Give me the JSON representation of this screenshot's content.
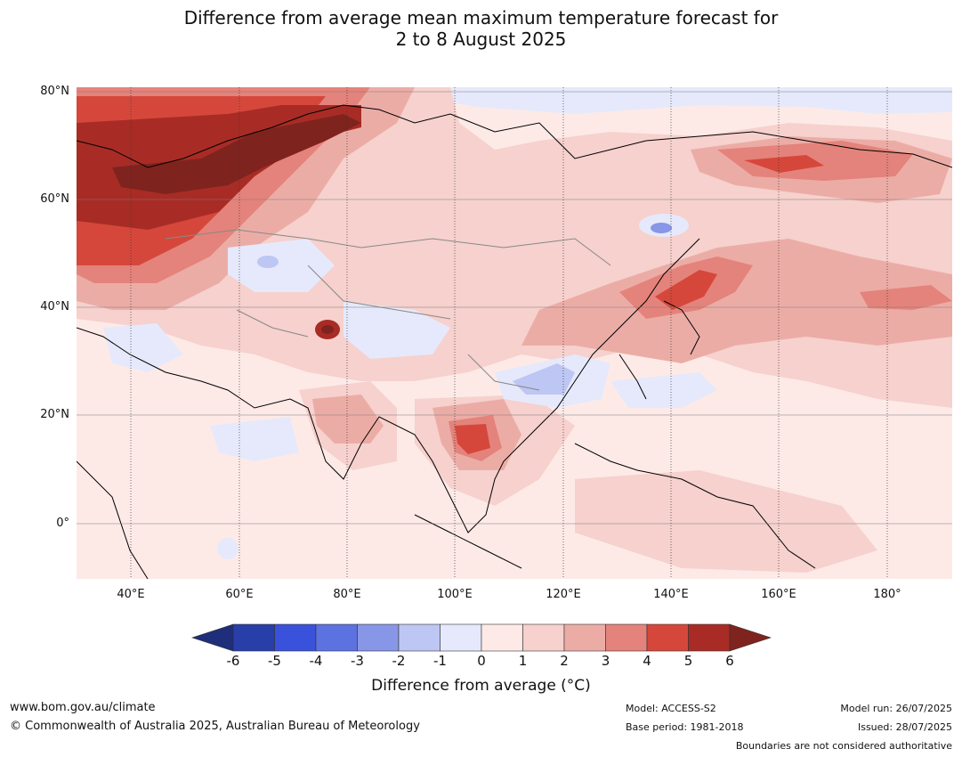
{
  "title_line1": "Difference from average mean maximum temperature forecast for",
  "title_line2": "2 to 8 August 2025",
  "map": {
    "lon_range": [
      30,
      192
    ],
    "lat_range": [
      -10,
      80
    ],
    "lat_labels": [
      "80°N",
      "60°N",
      "40°N",
      "20°N",
      "0°"
    ],
    "lon_labels": [
      "40°E",
      "60°E",
      "80°E",
      "100°E",
      "120°E",
      "140°E",
      "160°E",
      "180°"
    ],
    "features": [
      {
        "name": "northwest-russia-extreme-warm",
        "category": "6",
        "color": "#7f231f"
      },
      {
        "name": "yamal-warm-anomaly",
        "category": "5",
        "color": "#a82c25"
      },
      {
        "name": "pakistan-india-hotspot",
        "category": "5",
        "color": "#a82c25"
      },
      {
        "name": "thailand-laos-warm",
        "category": "4",
        "color": "#d6473b"
      },
      {
        "name": "japan-sea-warm",
        "category": "4",
        "color": "#d6473b"
      },
      {
        "name": "east-siberia-warm",
        "category": "4",
        "color": "#d6473b"
      },
      {
        "name": "southeast-china-cool",
        "category": "-2",
        "color": "#bec6f3"
      },
      {
        "name": "kazakhstan-cool",
        "category": "-2",
        "color": "#bec6f3"
      },
      {
        "name": "okhotsk-cool",
        "category": "-3",
        "color": "#8796e6"
      }
    ]
  },
  "colorbar": {
    "ticks": [
      "-6",
      "-5",
      "-4",
      "-3",
      "-2",
      "-1",
      "0",
      "1",
      "2",
      "3",
      "4",
      "5",
      "6"
    ],
    "colors": [
      "#283ea8",
      "#3a52db",
      "#5c72e0",
      "#8796e6",
      "#bec6f3",
      "#e6e9fb",
      "#fdeae7",
      "#f6d1cd",
      "#ecaca6",
      "#e4837b",
      "#d6473b",
      "#a82c25"
    ],
    "low_extend_color": "#1e2e7a",
    "high_extend_color": "#7f231f",
    "label": "Difference from average (°C)"
  },
  "footer": {
    "website": "www.bom.gov.au/climate",
    "copyright": "© Commonwealth of Australia 2025, Australian Bureau of Meteorology",
    "model": "Model: ACCESS-S2",
    "base_period": "Base period: 1981-2018",
    "model_run": "Model run: 26/07/2025",
    "issued": "Issued: 28/07/2025",
    "disclaimer": "Boundaries are not considered authoritative"
  }
}
